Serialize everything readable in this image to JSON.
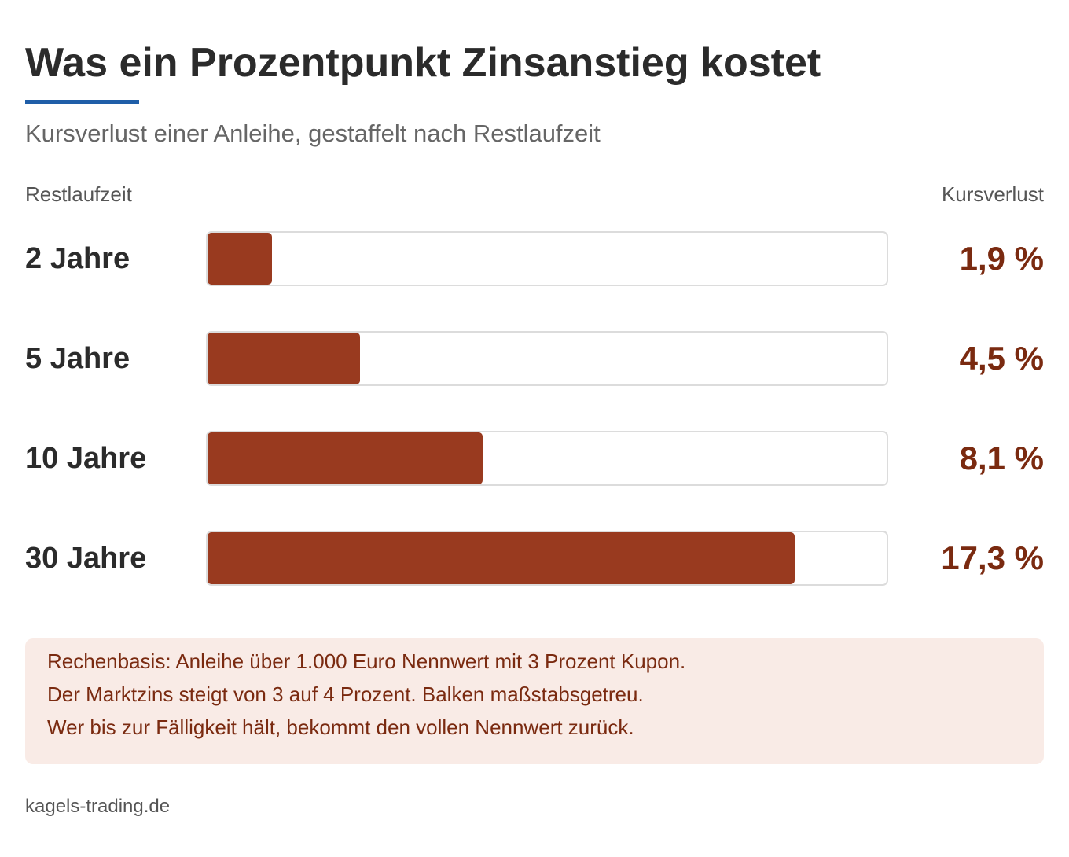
{
  "header": {
    "title": "Was ein Prozentpunkt Zinsanstieg kostet",
    "subtitle": "Kursverlust einer Anleihe, gestaffelt nach Restlaufzeit",
    "accent_color": "#1f5ea8"
  },
  "columns": {
    "left": "Restlaufzeit",
    "right": "Kursverlust"
  },
  "chart_data": {
    "type": "bar",
    "orientation": "horizontal",
    "title": "Was ein Prozentpunkt Zinsanstieg kostet",
    "subtitle": "Kursverlust einer Anleihe, gestaffelt nach Restlaufzeit",
    "xlabel": "Kursverlust",
    "ylabel": "Restlaufzeit",
    "categories": [
      "2 Jahre",
      "5 Jahre",
      "10 Jahre",
      "30 Jahre"
    ],
    "values": [
      1.9,
      4.5,
      8.1,
      17.3
    ],
    "value_labels": [
      "1,9 %",
      "4,5 %",
      "8,1 %",
      "17,3 %"
    ],
    "xlim": [
      0,
      20
    ],
    "grid": false,
    "bar_color": "#993a1f",
    "value_color": "#7a2a10"
  },
  "note": {
    "lines": [
      "Rechenbasis: Anleihe über 1.000 Euro Nennwert mit 3 Prozent Kupon.",
      "Der Marktzins steigt von 3 auf 4 Prozent. Balken maßstabsgetreu.",
      "Wer bis zur Fälligkeit hält, bekommt den vollen Nennwert zurück."
    ]
  },
  "footer": {
    "source": "kagels-trading.de"
  }
}
